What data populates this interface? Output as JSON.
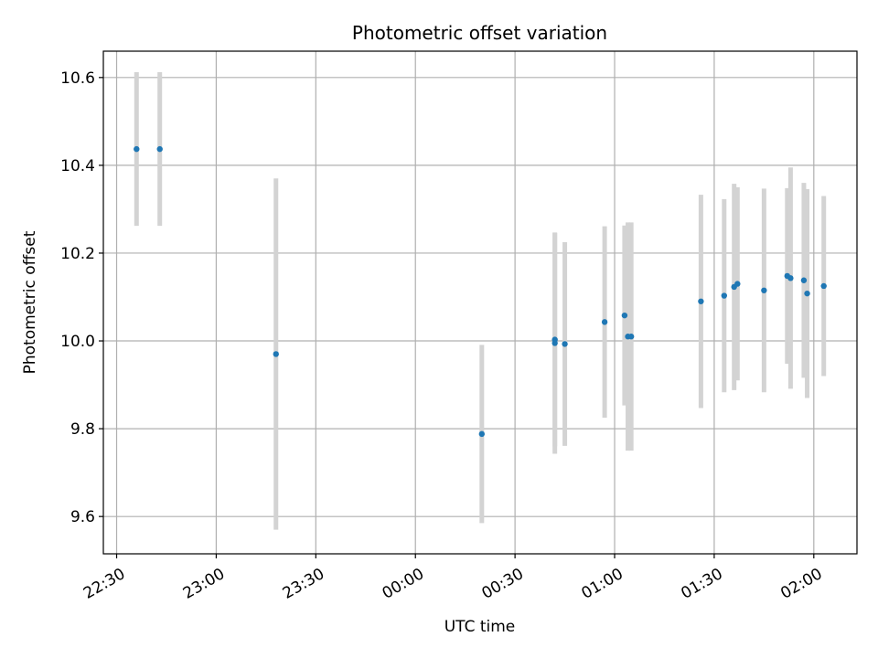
{
  "chart_data": {
    "type": "scatter",
    "title": "Photometric offset variation",
    "xlabel": "UTC time",
    "ylabel": "Photometric offset",
    "x_ticks": [
      "22:30",
      "23:00",
      "23:30",
      "00:00",
      "00:30",
      "01:00",
      "01:30",
      "02:00"
    ],
    "y_ticks": [
      "9.6",
      "9.8",
      "10.0",
      "10.2",
      "10.4",
      "10.6"
    ],
    "xlim": [
      "22:26",
      "02:13"
    ],
    "ylim": [
      9.515,
      10.66
    ],
    "grid": true,
    "marker_color": "#1f77b4",
    "errorbar_color": "#d3d3d3",
    "points": [
      {
        "x": "22:36",
        "y": 10.437,
        "yerr": 0.175
      },
      {
        "x": "22:43",
        "y": 10.437,
        "yerr": 0.175
      },
      {
        "x": "23:18",
        "y": 9.97,
        "yerr": 0.4
      },
      {
        "x": "00:20",
        "y": 9.788,
        "yerr": 0.203
      },
      {
        "x": "00:42",
        "y": 9.995,
        "yerr": 0.252
      },
      {
        "x": "00:42",
        "y": 10.003,
        "yerr": 0.243
      },
      {
        "x": "00:45",
        "y": 9.993,
        "yerr": 0.232
      },
      {
        "x": "00:57",
        "y": 10.043,
        "yerr": 0.218
      },
      {
        "x": "01:03",
        "y": 10.058,
        "yerr": 0.205
      },
      {
        "x": "01:04",
        "y": 10.01,
        "yerr": 0.26
      },
      {
        "x": "01:05",
        "y": 10.01,
        "yerr": 0.26
      },
      {
        "x": "01:26",
        "y": 10.09,
        "yerr": 0.243
      },
      {
        "x": "01:33",
        "y": 10.103,
        "yerr": 0.22
      },
      {
        "x": "01:36",
        "y": 10.123,
        "yerr": 0.235
      },
      {
        "x": "01:37",
        "y": 10.13,
        "yerr": 0.22
      },
      {
        "x": "01:45",
        "y": 10.115,
        "yerr": 0.232
      },
      {
        "x": "01:52",
        "y": 10.148,
        "yerr": 0.2
      },
      {
        "x": "01:53",
        "y": 10.143,
        "yerr": 0.252
      },
      {
        "x": "01:57",
        "y": 10.138,
        "yerr": 0.222
      },
      {
        "x": "01:58",
        "y": 10.108,
        "yerr": 0.238
      },
      {
        "x": "02:03",
        "y": 10.125,
        "yerr": 0.205
      }
    ]
  }
}
